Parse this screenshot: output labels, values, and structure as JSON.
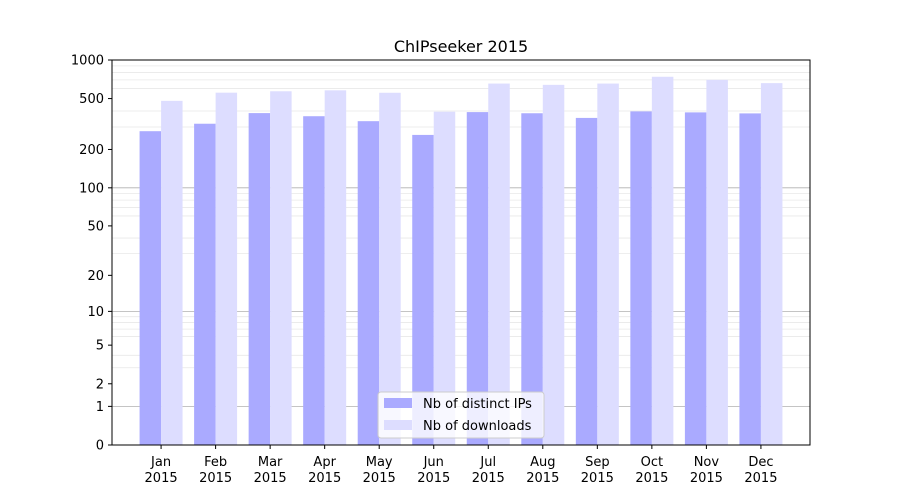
{
  "chart_data": {
    "type": "bar",
    "title": "ChIPseeker 2015",
    "xlabel": "",
    "ylabel": "",
    "y_scale": "symlog",
    "ylim": [
      0,
      1000
    ],
    "y_ticks": [
      0,
      1,
      2,
      5,
      10,
      20,
      50,
      100,
      200,
      500,
      1000
    ],
    "y_tick_labels": [
      "0",
      "1",
      "2",
      "5",
      "10",
      "20",
      "50",
      "100",
      "200",
      "500",
      "1000"
    ],
    "grid": true,
    "legend_position": "bottom-center",
    "categories": [
      {
        "month": "Jan",
        "year": "2015"
      },
      {
        "month": "Feb",
        "year": "2015"
      },
      {
        "month": "Mar",
        "year": "2015"
      },
      {
        "month": "Apr",
        "year": "2015"
      },
      {
        "month": "May",
        "year": "2015"
      },
      {
        "month": "Jun",
        "year": "2015"
      },
      {
        "month": "Jul",
        "year": "2015"
      },
      {
        "month": "Aug",
        "year": "2015"
      },
      {
        "month": "Sep",
        "year": "2015"
      },
      {
        "month": "Oct",
        "year": "2015"
      },
      {
        "month": "Nov",
        "year": "2015"
      },
      {
        "month": "Dec",
        "year": "2015"
      }
    ],
    "series": [
      {
        "name": "Nb of distinct IPs",
        "color": "#aaaaff",
        "values": [
          278,
          318,
          385,
          364,
          333,
          260,
          392,
          384,
          353,
          397,
          390,
          383
        ]
      },
      {
        "name": "Nb of downloads",
        "color": "#ddddff",
        "values": [
          480,
          556,
          570,
          580,
          555,
          395,
          655,
          640,
          655,
          740,
          700,
          660
        ]
      }
    ]
  }
}
